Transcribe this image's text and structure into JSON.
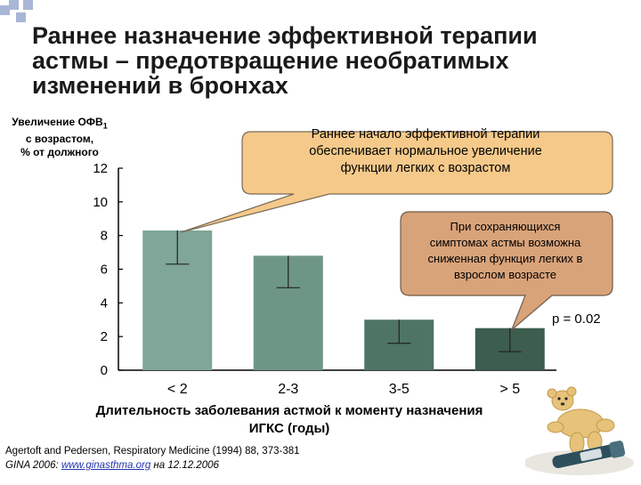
{
  "title": {
    "lines": [
      "Раннее назначение эффективной терапии",
      "астмы – предотвращение необратимых",
      "изменений в бронхах"
    ]
  },
  "y_axis_label": {
    "line1_main": "Увеличение ОФВ",
    "line1_sub": "1",
    "line2": "с возрастом,",
    "line3": "% от должного"
  },
  "x_axis_label": "Длительность заболевания астмой к моменту назначения ИГКС (годы)",
  "callouts": {
    "main": {
      "lines": [
        "Раннее начало эффективной терапии",
        "обеспечивает нормальное увеличение",
        "функции легких с возрастом"
      ],
      "fill": "#f5c98a"
    },
    "secondary": {
      "lines": [
        "При сохраняющихся",
        "симптомах астмы возможна",
        "сниженная функция легких в",
        "взрослом возрасте"
      ],
      "fill": "#d9a37a"
    }
  },
  "p_value": "p = 0.02",
  "reference": {
    "line1": "Agertoft and Pedersen, Respiratory Medicine (1994) 88, 373-381",
    "line2_prefix": "GINA 2006: ",
    "line2_link": "www.ginasthma.org",
    "line2_suffix": " на 12.12.2006"
  },
  "colors": {
    "bar_1": "#7fa698",
    "bar_2": "#6e9686",
    "bar_3": "#4e7463",
    "bar_4": "#3d5d4e",
    "deco_squares": "#a9b6d6",
    "link": "#2233aa"
  },
  "chart_data": {
    "type": "bar",
    "categories": [
      "< 2",
      "2-3",
      "3-5",
      "> 5"
    ],
    "values": [
      8.3,
      6.8,
      3.0,
      2.5
    ],
    "error_low": [
      6.3,
      4.9,
      1.6,
      1.1
    ],
    "error_high": [
      8.3,
      6.8,
      3.0,
      2.5
    ],
    "ylim": [
      0,
      12
    ],
    "yticks": [
      0,
      2,
      4,
      6,
      8,
      10,
      12
    ],
    "grid": false,
    "legend": "none"
  }
}
